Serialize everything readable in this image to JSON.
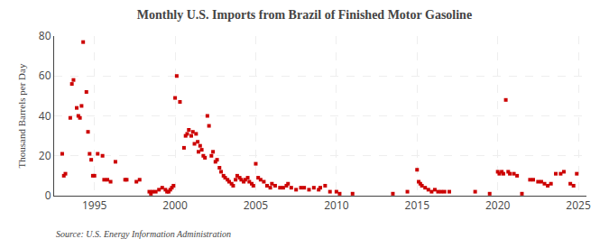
{
  "chart_data": {
    "type": "scatter",
    "title": "Monthly U.S. Imports from Brazil of Finished Motor Gasoline",
    "ylabel": "Thousand Barrels per Day",
    "annotations": [
      "Source: U.S. Energy Information Administration"
    ],
    "color": "#cc0000",
    "marker": "square",
    "grid": true,
    "xlim": [
      1992.5,
      2025.5
    ],
    "xticks": [
      1995,
      2000,
      2005,
      2010,
      2015,
      2020,
      2025
    ],
    "ylim": [
      0,
      80
    ],
    "yticks": [
      0,
      20,
      40,
      60,
      80
    ],
    "x": [
      1993.0,
      1993.1,
      1993.2,
      1993.5,
      1993.6,
      1993.7,
      1993.9,
      1994.0,
      1994.1,
      1994.2,
      1994.3,
      1994.5,
      1994.6,
      1994.7,
      1994.8,
      1994.9,
      1995.0,
      1995.2,
      1995.5,
      1995.6,
      1995.8,
      1996.0,
      1996.3,
      1996.9,
      1997.0,
      1997.6,
      1997.8,
      1998.4,
      1998.5,
      1998.6,
      1998.8,
      1999.0,
      1999.2,
      1999.4,
      1999.5,
      1999.6,
      1999.7,
      1999.8,
      1999.9,
      2000.0,
      2000.1,
      2000.3,
      2000.55,
      2000.65,
      2000.75,
      2000.85,
      2001.0,
      2001.1,
      2001.2,
      2001.3,
      2001.4,
      2001.45,
      2001.55,
      2001.65,
      2001.75,
      2001.85,
      2002.0,
      2002.1,
      2002.25,
      2002.35,
      2002.5,
      2002.6,
      2002.75,
      2002.85,
      2003.0,
      2003.1,
      2003.25,
      2003.35,
      2003.5,
      2003.6,
      2003.75,
      2003.85,
      2004.0,
      2004.1,
      2004.25,
      2004.35,
      2004.5,
      2004.6,
      2004.75,
      2004.85,
      2005.0,
      2005.15,
      2005.3,
      2005.5,
      2005.7,
      2005.9,
      2006.0,
      2006.2,
      2006.5,
      2006.7,
      2006.9,
      2007.0,
      2007.2,
      2007.5,
      2007.8,
      2008.0,
      2008.3,
      2008.6,
      2008.9,
      2009.0,
      2009.3,
      2009.6,
      2010.0,
      2010.2,
      2011.0,
      2013.5,
      2014.4,
      2015.0,
      2015.1,
      2015.2,
      2015.3,
      2015.5,
      2015.7,
      2015.9,
      2016.1,
      2016.3,
      2016.5,
      2016.7,
      2017.0,
      2018.6,
      2019.5,
      2020.0,
      2020.1,
      2020.25,
      2020.35,
      2020.5,
      2020.65,
      2020.75,
      2021.0,
      2021.2,
      2021.5,
      2022.0,
      2022.2,
      2022.5,
      2022.7,
      2022.9,
      2023.1,
      2023.3,
      2023.6,
      2023.9,
      2024.1,
      2024.5,
      2024.7,
      2024.9
    ],
    "values": [
      21,
      10,
      11,
      39,
      56,
      58,
      44,
      40,
      39,
      45,
      77,
      52,
      32,
      21,
      18,
      10,
      10,
      21,
      20,
      8,
      8,
      7,
      17,
      8,
      8,
      7,
      8,
      2,
      1,
      2,
      2,
      3,
      4,
      3,
      2,
      2,
      3,
      4,
      5,
      49,
      60,
      47,
      24,
      30,
      31,
      33,
      30,
      32,
      26,
      31,
      27,
      22,
      25,
      23,
      20,
      19,
      40,
      35,
      20,
      22,
      17,
      18,
      14,
      12,
      10,
      9,
      8,
      7,
      6,
      5,
      8,
      10,
      9,
      8,
      7,
      8,
      9,
      7,
      6,
      5,
      16,
      9,
      8,
      7,
      5,
      4,
      6,
      5,
      4,
      4,
      5,
      6,
      4,
      3,
      4,
      4,
      3,
      4,
      3,
      4,
      5,
      2,
      2,
      1,
      1,
      1,
      2,
      13,
      7,
      6,
      5,
      4,
      3,
      2,
      3,
      2,
      2,
      2,
      2,
      2,
      1,
      12,
      11,
      12,
      11,
      48,
      12,
      11,
      11,
      10,
      1,
      8,
      8,
      7,
      7,
      6,
      5,
      6,
      11,
      11,
      12,
      6,
      5,
      11
    ]
  }
}
